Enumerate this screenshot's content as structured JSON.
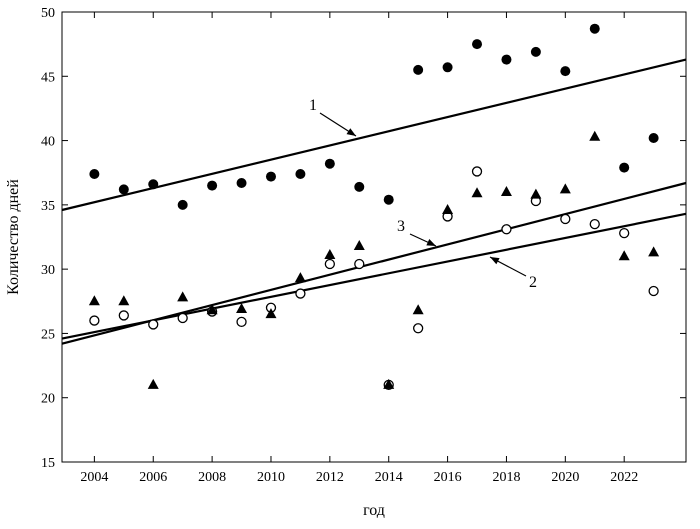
{
  "chart_data": {
    "type": "scatter",
    "xlabel": "год",
    "ylabel": "Количество дней",
    "xlim": [
      2002.9,
      2024.1
    ],
    "ylim": [
      15,
      50
    ],
    "x_ticks": [
      2004,
      2006,
      2008,
      2010,
      2012,
      2014,
      2016,
      2018,
      2020,
      2022
    ],
    "y_ticks": [
      15,
      20,
      25,
      30,
      35,
      40,
      45,
      50
    ],
    "grid": false,
    "x": [
      2004,
      2005,
      2006,
      2007,
      2008,
      2009,
      2010,
      2011,
      2012,
      2013,
      2014,
      2015,
      2016,
      2017,
      2018,
      2019,
      2020,
      2021,
      2022,
      2023
    ],
    "series": [
      {
        "marker": "filled-circle",
        "values": [
          37.4,
          36.2,
          36.6,
          35.0,
          36.5,
          36.7,
          37.2,
          37.4,
          38.2,
          36.4,
          35.4,
          45.5,
          45.7,
          47.5,
          46.3,
          46.9,
          45.4,
          48.7,
          37.9,
          40.2
        ]
      },
      {
        "marker": "open-circle",
        "values": [
          26.0,
          26.4,
          25.7,
          26.2,
          26.7,
          25.9,
          27.0,
          28.1,
          30.4,
          30.4,
          21.0,
          25.4,
          34.1,
          37.6,
          33.1,
          35.3,
          33.9,
          33.5,
          32.8,
          28.3
        ]
      },
      {
        "marker": "filled-triangle",
        "values": [
          27.5,
          27.5,
          21.0,
          27.8,
          26.8,
          26.9,
          26.5,
          29.3,
          31.1,
          31.8,
          21.0,
          26.8,
          34.6,
          35.9,
          36.0,
          35.8,
          36.2,
          40.3,
          31.0,
          31.3
        ]
      }
    ],
    "trend_lines": [
      {
        "label": "1",
        "x": [
          2002.9,
          2024.1
        ],
        "y": [
          34.6,
          46.3
        ]
      },
      {
        "label": "2",
        "x": [
          2002.9,
          2024.1
        ],
        "y": [
          24.6,
          34.3
        ]
      },
      {
        "label": "3",
        "x": [
          2002.9,
          2024.1
        ],
        "y": [
          24.2,
          36.7
        ]
      }
    ]
  }
}
